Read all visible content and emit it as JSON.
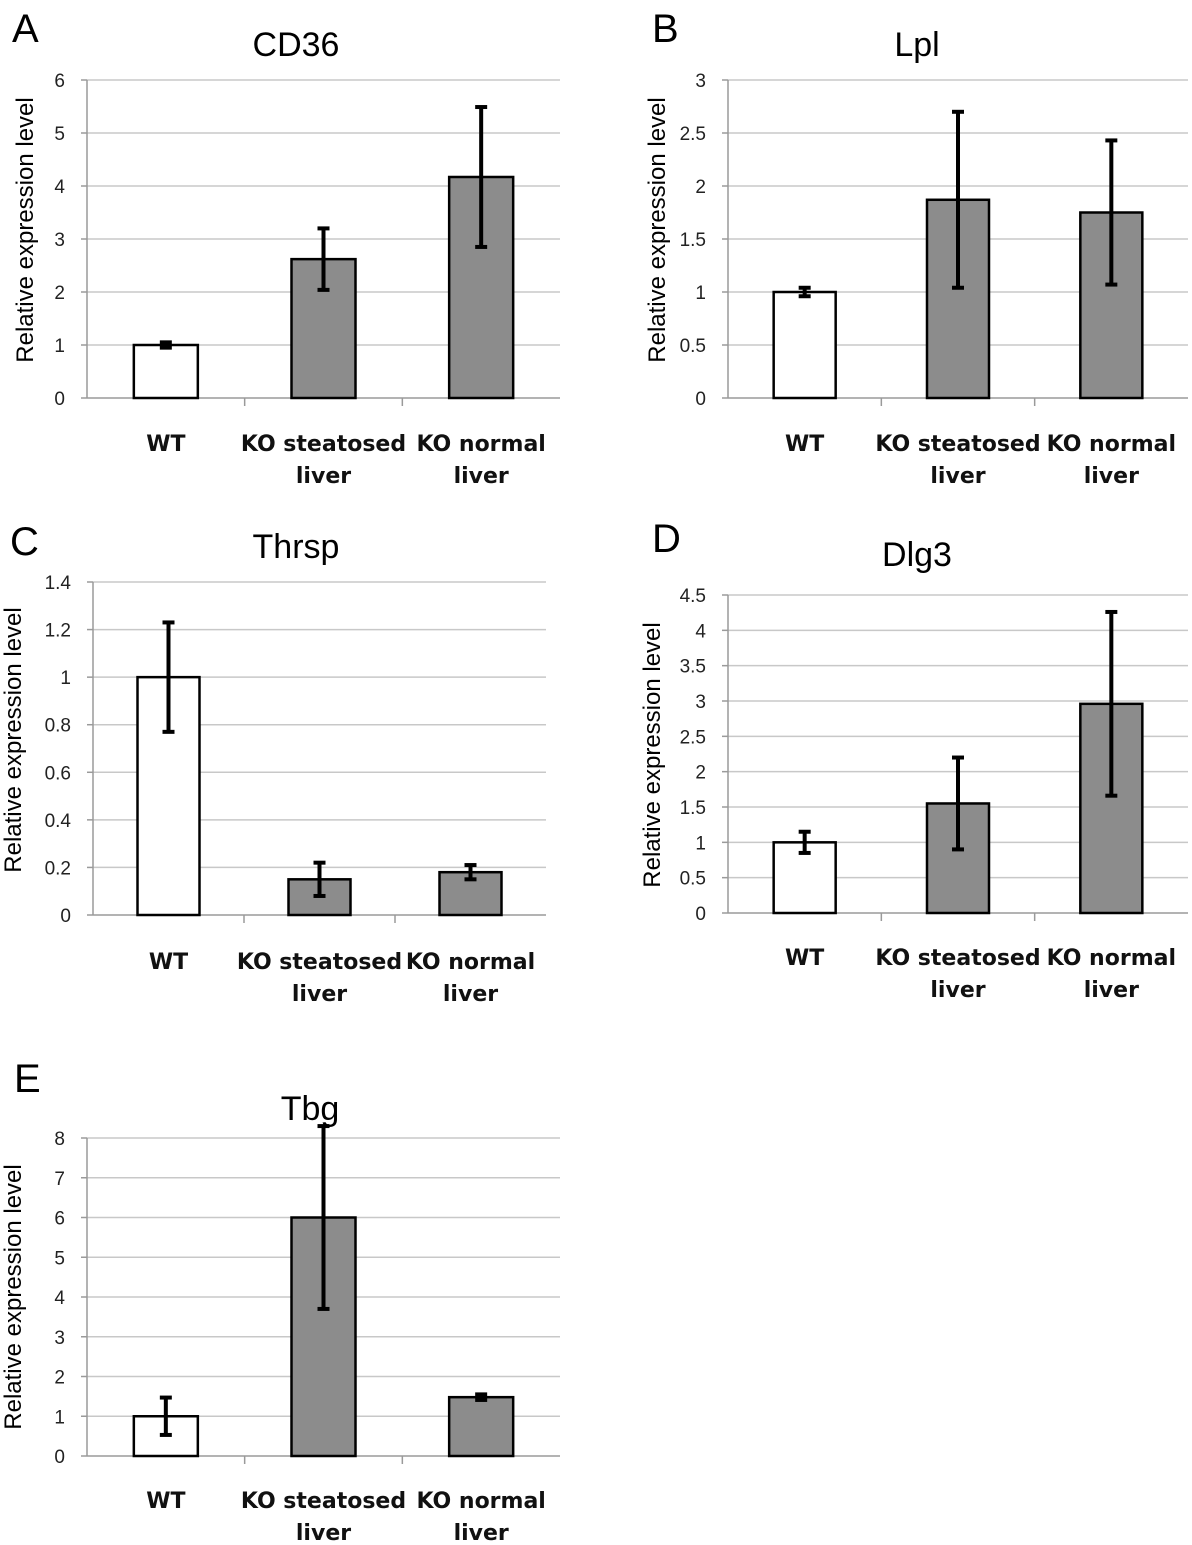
{
  "chart_data": [
    {
      "panel": "A",
      "type": "bar",
      "title": "CD36",
      "ylabel": "Relative expression level",
      "categories": [
        [
          "WT"
        ],
        [
          "KO steatosed",
          "liver"
        ],
        [
          "KO normal",
          "liver"
        ]
      ],
      "values": [
        1.0,
        2.62,
        4.17
      ],
      "errors": [
        0.05,
        0.58,
        1.32
      ],
      "yticks": [
        "0",
        "1",
        "2",
        "3",
        "4",
        "5",
        "6"
      ],
      "ylim": [
        0,
        6
      ],
      "grid": true,
      "bar_colors": [
        "#ffffff",
        "#8c8c8c",
        "#8c8c8c"
      ]
    },
    {
      "panel": "B",
      "type": "bar",
      "title": "Lpl",
      "ylabel": "Relative expression level",
      "categories": [
        [
          "WT"
        ],
        [
          "KO steatosed",
          "liver"
        ],
        [
          "KO normal",
          "liver"
        ]
      ],
      "values": [
        1.0,
        1.87,
        1.75
      ],
      "errors": [
        0.04,
        0.83,
        0.68
      ],
      "yticks": [
        "0",
        "0.5",
        "1",
        "1.5",
        "2",
        "2.5",
        "3"
      ],
      "ylim": [
        0,
        3
      ],
      "grid": true,
      "bar_colors": [
        "#ffffff",
        "#8c8c8c",
        "#8c8c8c"
      ]
    },
    {
      "panel": "C",
      "type": "bar",
      "title": "Thrsp",
      "ylabel": "Relative expression level",
      "categories": [
        [
          "WT"
        ],
        [
          "KO steatosed",
          "liver"
        ],
        [
          "KO normal",
          "liver"
        ]
      ],
      "values": [
        1.0,
        0.15,
        0.18
      ],
      "errors": [
        0.23,
        0.07,
        0.03
      ],
      "yticks": [
        "0",
        "0.2",
        "0.4",
        "0.6",
        "0.8",
        "1",
        "1.2",
        "1.4"
      ],
      "ylim": [
        0,
        1.4
      ],
      "grid": true,
      "bar_colors": [
        "#ffffff",
        "#8c8c8c",
        "#8c8c8c"
      ]
    },
    {
      "panel": "D",
      "type": "bar",
      "title": "Dlg3",
      "ylabel": "Relative expression level",
      "categories": [
        [
          "WT"
        ],
        [
          "KO steatosed",
          "liver"
        ],
        [
          "KO normal",
          "liver"
        ]
      ],
      "values": [
        1.0,
        1.55,
        2.96
      ],
      "errors": [
        0.15,
        0.65,
        1.3
      ],
      "yticks": [
        "0",
        "0.5",
        "1",
        "1.5",
        "2",
        "2.5",
        "3",
        "3.5",
        "4",
        "4.5"
      ],
      "ylim": [
        0,
        4.5
      ],
      "grid": true,
      "bar_colors": [
        "#ffffff",
        "#8c8c8c",
        "#8c8c8c"
      ]
    },
    {
      "panel": "E",
      "type": "bar",
      "title": "Tbg",
      "ylabel": "Relative expression level",
      "categories": [
        [
          "WT"
        ],
        [
          "KO steatosed",
          "liver"
        ],
        [
          "KO normal",
          "liver"
        ]
      ],
      "values": [
        1.0,
        6.0,
        1.48
      ],
      "errors": [
        0.47,
        2.3,
        0.07
      ],
      "yticks": [
        "0",
        "1",
        "2",
        "3",
        "4",
        "5",
        "6",
        "7",
        "8"
      ],
      "ylim": [
        0,
        8
      ],
      "grid": true,
      "bar_colors": [
        "#ffffff",
        "#8c8c8c",
        "#8c8c8c"
      ]
    }
  ]
}
